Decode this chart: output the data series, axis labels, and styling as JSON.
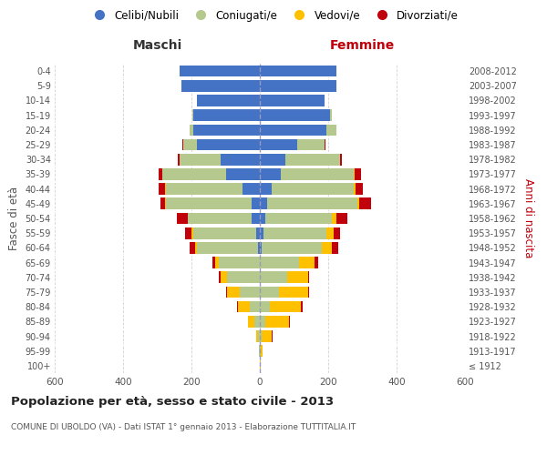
{
  "age_groups": [
    "100+",
    "95-99",
    "90-94",
    "85-89",
    "80-84",
    "75-79",
    "70-74",
    "65-69",
    "60-64",
    "55-59",
    "50-54",
    "45-49",
    "40-44",
    "35-39",
    "30-34",
    "25-29",
    "20-24",
    "15-19",
    "10-14",
    "5-9",
    "0-4"
  ],
  "birth_years": [
    "≤ 1912",
    "1913-1917",
    "1918-1922",
    "1923-1927",
    "1928-1932",
    "1933-1937",
    "1938-1942",
    "1943-1947",
    "1948-1952",
    "1953-1957",
    "1958-1962",
    "1963-1967",
    "1968-1972",
    "1973-1977",
    "1978-1982",
    "1983-1987",
    "1988-1992",
    "1993-1997",
    "1998-2002",
    "2003-2007",
    "2008-2012"
  ],
  "colors": {
    "celibe": "#4472c4",
    "coniugato": "#b5c98e",
    "vedovo": "#ffc000",
    "divorziato": "#c0000b"
  },
  "males": {
    "celibe": [
      0,
      0,
      0,
      0,
      0,
      0,
      0,
      0,
      5,
      10,
      25,
      25,
      50,
      100,
      115,
      185,
      195,
      195,
      185,
      230,
      235
    ],
    "coniugato": [
      0,
      2,
      5,
      15,
      30,
      60,
      95,
      120,
      180,
      185,
      185,
      250,
      225,
      185,
      120,
      40,
      10,
      2,
      0,
      0,
      0
    ],
    "vedovo": [
      0,
      2,
      5,
      20,
      35,
      35,
      20,
      10,
      5,
      5,
      2,
      2,
      2,
      0,
      0,
      0,
      0,
      0,
      0,
      0,
      0
    ],
    "divorziato": [
      0,
      0,
      0,
      0,
      2,
      5,
      5,
      10,
      15,
      20,
      30,
      15,
      20,
      10,
      5,
      2,
      0,
      0,
      0,
      0,
      0
    ]
  },
  "females": {
    "nubile": [
      0,
      0,
      0,
      0,
      0,
      0,
      0,
      0,
      5,
      10,
      15,
      20,
      35,
      60,
      75,
      110,
      195,
      205,
      190,
      225,
      225
    ],
    "coniugata": [
      0,
      2,
      5,
      15,
      30,
      55,
      80,
      115,
      175,
      185,
      195,
      265,
      240,
      215,
      160,
      80,
      30,
      5,
      0,
      0,
      0
    ],
    "vedova": [
      2,
      5,
      30,
      70,
      90,
      85,
      60,
      45,
      30,
      20,
      15,
      5,
      5,
      2,
      0,
      0,
      0,
      0,
      0,
      0,
      0
    ],
    "divorziata": [
      0,
      0,
      2,
      2,
      5,
      5,
      5,
      10,
      20,
      20,
      30,
      35,
      20,
      20,
      5,
      2,
      0,
      0,
      0,
      0,
      0
    ]
  },
  "title": "Popolazione per età, sesso e stato civile - 2013",
  "subtitle": "COMUNE DI UBOLDO (VA) - Dati ISTAT 1° gennaio 2013 - Elaborazione TUTTITALIA.IT",
  "xlabel_left": "Maschi",
  "xlabel_right": "Femmine",
  "ylabel_left": "Fasce di età",
  "ylabel_right": "Anni di nascita",
  "legend_labels": [
    "Celibi/Nubili",
    "Coniugati/e",
    "Vedovi/e",
    "Divorziati/e"
  ],
  "xlim": 600,
  "background_color": "#ffffff",
  "grid_color": "#cccccc"
}
